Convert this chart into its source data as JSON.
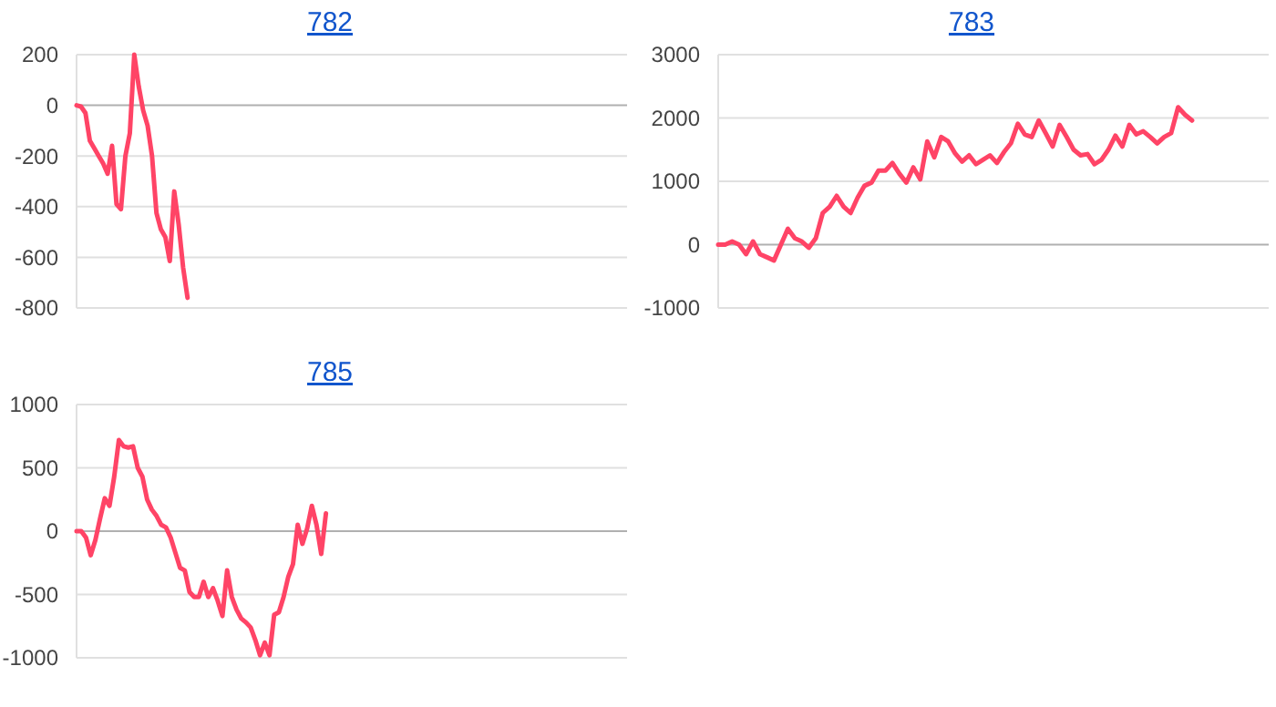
{
  "chart_data": [
    {
      "type": "line",
      "title": "782",
      "categories": [
        null,
        null,
        null,
        null,
        null,
        null,
        null,
        null,
        null,
        null,
        null,
        null,
        null,
        null,
        null,
        null,
        null,
        null,
        null,
        null,
        null,
        null,
        null,
        null,
        null,
        null,
        null,
        null,
        null,
        null,
        null,
        null,
        null,
        null,
        null,
        null,
        null,
        null,
        null,
        null,
        null,
        null,
        null,
        null,
        null,
        null,
        null,
        null,
        null,
        null,
        null,
        null,
        null,
        null,
        null,
        null,
        null,
        null,
        null,
        null,
        null,
        null,
        null,
        null,
        null,
        null,
        null,
        null,
        null,
        null,
        null,
        null,
        null,
        null,
        null,
        null,
        null,
        null,
        null,
        null,
        null,
        null,
        null,
        null,
        null,
        null,
        null,
        null,
        null,
        null,
        null,
        null,
        null,
        null,
        null,
        null,
        null,
        null,
        null,
        null,
        null,
        null,
        null,
        null,
        null,
        null,
        null,
        null,
        null,
        null,
        null,
        null,
        null,
        null,
        null,
        null,
        null,
        null,
        null,
        null,
        null,
        null,
        null,
        null,
        null
      ],
      "series": [
        {
          "color": "#ff4466",
          "values": [
            0,
            -5,
            -30,
            -140,
            -170,
            -200,
            -230,
            -270,
            -160,
            -390,
            -410,
            -200,
            -110,
            200,
            75,
            -20,
            -80,
            -200,
            -425,
            -490,
            -520,
            -615,
            -340,
            -470,
            -640,
            -760,
            null,
            null,
            null,
            null,
            null,
            null,
            null,
            null,
            null,
            null,
            null,
            null,
            null,
            null,
            null,
            null,
            null,
            null,
            null,
            null,
            null,
            null,
            null,
            null,
            null,
            null,
            null,
            null,
            null,
            null,
            null,
            null,
            null,
            null,
            null,
            null,
            null,
            null,
            null,
            null,
            null,
            null,
            null,
            null,
            null,
            null,
            null,
            null,
            null,
            null,
            null,
            null,
            null,
            null,
            null,
            null,
            null,
            null,
            null,
            null,
            null,
            null,
            null,
            null,
            null,
            null,
            null,
            null,
            null,
            null,
            null,
            null,
            null,
            null,
            null,
            null,
            null,
            null,
            null,
            null,
            null,
            null,
            null,
            null,
            null,
            null,
            null,
            null,
            null,
            null,
            null,
            null,
            null,
            null,
            null,
            null,
            null,
            null,
            null
          ]
        }
      ],
      "ylim": [
        -800,
        200
      ],
      "yticks": [
        -800,
        -600,
        -400,
        -200,
        0,
        200
      ],
      "grid": "y",
      "tick_labels": "y"
    },
    {
      "type": "line",
      "title": "783",
      "categories": [
        null,
        null,
        null,
        null,
        null,
        null,
        null,
        null,
        null,
        null,
        null,
        null,
        null,
        null,
        null,
        null,
        null,
        null,
        null,
        null,
        null,
        null,
        null,
        null,
        null,
        null,
        null,
        null,
        null,
        null,
        null,
        null,
        null,
        null,
        null,
        null,
        null,
        null,
        null,
        null,
        null,
        null,
        null,
        null,
        null,
        null,
        null,
        null,
        null,
        null,
        null,
        null,
        null,
        null,
        null,
        null,
        null,
        null,
        null,
        null,
        null,
        null,
        null,
        null,
        null,
        null,
        null,
        null,
        null,
        null,
        null,
        null,
        null,
        null,
        null,
        null,
        null,
        null,
        null,
        null
      ],
      "series": [
        {
          "color": "#ff4466",
          "values": [
            0,
            0,
            50,
            0,
            -150,
            50,
            -150,
            -200,
            -250,
            0,
            250,
            100,
            50,
            -50,
            100,
            500,
            600,
            770,
            600,
            500,
            740,
            930,
            980,
            1170,
            1170,
            1290,
            1120,
            980,
            1220,
            1030,
            1630,
            1380,
            1700,
            1630,
            1440,
            1310,
            1410,
            1270,
            1340,
            1410,
            1290,
            1460,
            1600,
            1910,
            1740,
            1700,
            1960,
            1760,
            1550,
            1890,
            1700,
            1500,
            1410,
            1430,
            1270,
            1340,
            1500,
            1720,
            1550,
            1890,
            1740,
            1790,
            1700,
            1600,
            1700,
            1760,
            2170,
            2050,
            1960,
            null,
            null,
            null,
            null,
            null,
            null,
            null,
            null,
            null,
            null,
            null
          ]
        }
      ],
      "ylim": [
        -1000,
        3000
      ],
      "yticks": [
        -1000,
        0,
        1000,
        2000,
        3000
      ],
      "grid": "y",
      "tick_labels": "y"
    },
    {
      "type": "line",
      "title": "785",
      "categories": [
        null,
        null,
        null,
        null,
        null,
        null,
        null,
        null,
        null,
        null,
        null,
        null,
        null,
        null,
        null,
        null,
        null,
        null,
        null,
        null,
        null,
        null,
        null,
        null,
        null,
        null,
        null,
        null,
        null,
        null,
        null,
        null,
        null,
        null,
        null,
        null,
        null,
        null,
        null,
        null,
        null,
        null,
        null,
        null,
        null,
        null,
        null,
        null,
        null,
        null,
        null,
        null,
        null,
        null,
        null,
        null,
        null,
        null,
        null,
        null,
        null,
        null,
        null,
        null,
        null,
        null,
        null,
        null,
        null,
        null,
        null,
        null,
        null,
        null,
        null,
        null,
        null,
        null,
        null,
        null,
        null,
        null,
        null,
        null,
        null,
        null,
        null,
        null,
        null,
        null,
        null,
        null,
        null,
        null,
        null,
        null,
        null,
        null,
        null,
        null,
        null,
        null,
        null,
        null,
        null,
        null,
        null,
        null,
        null,
        null,
        null,
        null,
        null,
        null,
        null,
        null,
        null,
        null
      ],
      "series": [
        {
          "color": "#ff4466",
          "values": [
            0,
            0,
            -50,
            -190,
            -70,
            100,
            260,
            200,
            430,
            720,
            670,
            660,
            670,
            500,
            430,
            250,
            170,
            120,
            50,
            30,
            -50,
            -170,
            -290,
            -310,
            -480,
            -520,
            -520,
            -400,
            -520,
            -450,
            -550,
            -670,
            -310,
            -520,
            -620,
            -690,
            -720,
            -760,
            -860,
            -980,
            -880,
            -980,
            -660,
            -640,
            -520,
            -360,
            -260,
            50,
            -100,
            20,
            200,
            50,
            -180,
            140,
            null,
            null,
            null,
            null,
            null,
            null,
            null,
            null,
            null,
            null,
            null,
            null,
            null,
            null,
            null,
            null,
            null,
            null,
            null,
            null,
            null,
            null,
            null,
            null,
            null,
            null,
            null,
            null,
            null,
            null,
            null,
            null,
            null,
            null,
            null,
            null,
            null,
            null,
            null,
            null,
            null,
            null,
            null,
            null,
            null,
            null,
            null,
            null,
            null,
            null,
            null,
            null,
            null,
            null,
            null,
            null,
            null,
            null,
            null,
            null,
            null,
            null,
            null,
            null
          ]
        }
      ],
      "ylim": [
        -1000,
        1000
      ],
      "yticks": [
        -1000,
        -500,
        0,
        500,
        1000
      ],
      "grid": "y",
      "tick_labels": "y"
    }
  ]
}
